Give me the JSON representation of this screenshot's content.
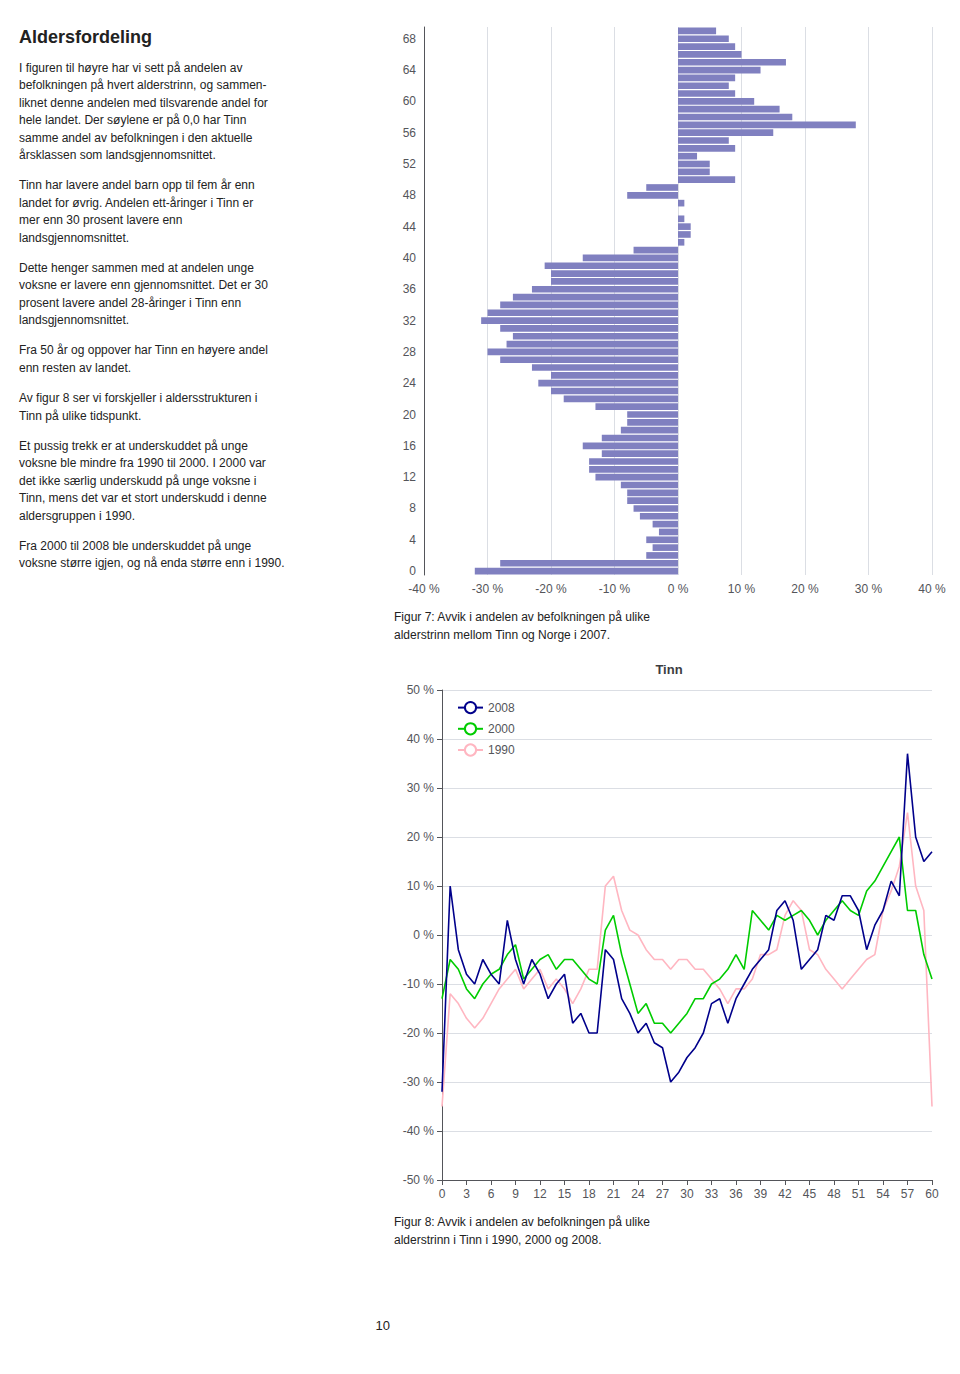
{
  "title": "Aldersfordeling",
  "annotations": [
    "I figuren til høyre har vi sett på andelen av\nbefolkningen på hvert alderstrinn, og sammen-\nliknet denne andelen med tilsvarende andel for\nhele landet. Der søylene er på 0,0 har Tinn\nsamme andel av befolkningen i den aktuelle\nårsklassen som landsgjennomsnittet.",
    "Tinn har lavere andel barn opp til fem år enn\nlandet for øvrig. Andelen ett-åringer i Tinn er\nmer enn 30 prosent lavere enn\nlandsgjennomsnittet.",
    "Dette henger sammen med at andelen unge\nvoksne er lavere enn gjennomsnittet. Det er 30\nprosent lavere andel 28-åringer i Tinn enn\nlandsgjennomsnittet.",
    "Fra 50 år og oppover har Tinn en høyere andel\nenn resten av landet.",
    "Av figur 8 ser vi forskjeller i aldersstrukturen i\nTinn på ulike tidspunkt.",
    "Et pussig trekk er at underskuddet på unge\nvoksne ble mindre fra 1990 til 2000. I 2000 var\ndet ikke særlig underskudd på unge voksne i\nTinn, mens det var et stort underskudd i denne\naldersgruppen i 1990.",
    "Fra 2000 til 2008 ble underskuddet på unge\nvoksne større igjen, og nå enda større enn i 1990.",
    "10"
  ],
  "chart_data": [
    {
      "type": "bar",
      "orientation": "horizontal",
      "categories": [
        0,
        null,
        null,
        null,
        4,
        null,
        null,
        null,
        8,
        null,
        null,
        null,
        12,
        null,
        null,
        null,
        16,
        null,
        null,
        null,
        20,
        null,
        null,
        null,
        24,
        null,
        null,
        null,
        28,
        null,
        null,
        null,
        32,
        null,
        null,
        null,
        36,
        null,
        null,
        null,
        40,
        null,
        null,
        null,
        44,
        null,
        null,
        null,
        48,
        null,
        null,
        null,
        52,
        null,
        null,
        null,
        56,
        null,
        null,
        null,
        60,
        null,
        null,
        null,
        64,
        null,
        null,
        null,
        68,
        null
      ],
      "values": [
        -32,
        -28,
        -5,
        -4,
        -5,
        -3,
        -4,
        -6,
        -7,
        -8,
        -8,
        -9,
        -13,
        -14,
        -14,
        -12,
        -15,
        -12,
        -9,
        -8,
        -8,
        -13,
        -18,
        -20,
        -22,
        -20,
        -23,
        -28,
        -30,
        -27,
        -26,
        -28,
        -31,
        -30,
        -28,
        -26,
        -23,
        -20,
        -20,
        -21,
        -15,
        -7,
        1,
        2,
        2,
        1,
        0,
        1,
        -8,
        -5,
        9,
        5,
        5,
        3,
        9,
        8,
        15,
        28,
        18,
        16,
        12,
        9,
        8,
        9,
        13,
        17,
        10,
        9,
        8,
        6
      ],
      "color": "#8080C0",
      "xlim": [
        -40,
        40
      ],
      "xticks": [
        {
          "value": -40,
          "label": "-40 %"
        },
        {
          "value": -30,
          "label": "-30 %"
        },
        {
          "value": -20,
          "label": "-20 %"
        },
        {
          "value": -10,
          "label": "-10 %"
        },
        {
          "value": 0,
          "label": "0 %"
        },
        {
          "value": 10,
          "label": "10 %"
        },
        {
          "value": 20,
          "label": "20 %"
        },
        {
          "value": 30,
          "label": "30 %"
        },
        {
          "value": 40,
          "label": "40 %"
        }
      ],
      "grid": true,
      "annotations": [
        "Figur 7: Avvik i andelen av befolkningen på ulike",
        "alderstrinn mellom Tinn og Norge i 2007."
      ]
    },
    {
      "type": "line",
      "title": "Tinn",
      "x": [
        0,
        1,
        2,
        3,
        4,
        5,
        6,
        7,
        8,
        9,
        10,
        11,
        12,
        13,
        14,
        15,
        16,
        17,
        18,
        19,
        20,
        21,
        22,
        23,
        24,
        25,
        26,
        27,
        28,
        29,
        30,
        31,
        32,
        33,
        34,
        35,
        36,
        37,
        38,
        39,
        40,
        41,
        42,
        43,
        44,
        45,
        46,
        47,
        48,
        49,
        50,
        51,
        52,
        53,
        54,
        55,
        56,
        57,
        58,
        59,
        60
      ],
      "series": [
        {
          "name": "1990",
          "color": "#FFB6C1",
          "values": [
            -35,
            -12,
            -14,
            -17,
            -19,
            -17,
            -14,
            -11,
            -9,
            -7,
            -11,
            -9,
            -7,
            -11,
            -9,
            -11,
            -14,
            -11,
            -7,
            -7,
            10,
            12,
            5,
            1,
            0,
            -3,
            -5,
            -5,
            -7,
            -5,
            -5,
            -7,
            -7,
            -9,
            -11,
            -14,
            -11,
            -11,
            -9,
            -4,
            -4,
            -3,
            4,
            7,
            5,
            -3,
            -4,
            -7,
            -9,
            -11,
            -9,
            -7,
            -5,
            -4,
            5,
            9,
            14,
            25,
            10,
            5,
            -35
          ]
        },
        {
          "name": "2000",
          "color": "#00CC00",
          "values": [
            -13,
            -5,
            -7,
            -11,
            -13,
            -10,
            -8,
            -7,
            -4,
            -2,
            -9,
            -7,
            -5,
            -4,
            -7,
            -5,
            -5,
            -7,
            -9,
            -10,
            1,
            4,
            -4,
            -10,
            -16,
            -14,
            -18,
            -18,
            -20,
            -18,
            -16,
            -13,
            -13,
            -10,
            -9,
            -7,
            -4,
            -7,
            5,
            3,
            1,
            4,
            3,
            4,
            5,
            3,
            0,
            3,
            5,
            7,
            5,
            4,
            9,
            11,
            14,
            17,
            20,
            5,
            5,
            -4,
            -9
          ]
        },
        {
          "name": "2008",
          "color": "#00008B",
          "values": [
            -32,
            10,
            -3,
            -8,
            -10,
            -5,
            -8,
            -10,
            3,
            -5,
            -10,
            -5,
            -8,
            -13,
            -10,
            -8,
            -18,
            -16,
            -20,
            -20,
            -3,
            -5,
            -13,
            -16,
            -20,
            -18,
            -22,
            -23,
            -30,
            -28,
            -25,
            -23,
            -20,
            -14,
            -13,
            -18,
            -13,
            -10,
            -7,
            -5,
            -3,
            5,
            7,
            3,
            -7,
            -5,
            -3,
            4,
            3,
            8,
            8,
            5,
            -3,
            2,
            5,
            11,
            8,
            37,
            20,
            15,
            17
          ]
        }
      ],
      "xlim": [
        0,
        60
      ],
      "xticks": [
        0,
        3,
        6,
        9,
        12,
        15,
        18,
        21,
        24,
        27,
        30,
        33,
        36,
        39,
        42,
        45,
        48,
        51,
        54,
        57,
        60
      ],
      "ylim": [
        -50,
        50
      ],
      "yticks": [
        {
          "value": -50,
          "label": "-50 %"
        },
        {
          "value": -40,
          "label": "-40 %"
        },
        {
          "value": -30,
          "label": "-30 %"
        },
        {
          "value": -20,
          "label": "-20 %"
        },
        {
          "value": -10,
          "label": "-10 %"
        },
        {
          "value": 0,
          "label": "0 %"
        },
        {
          "value": 10,
          "label": "10 %"
        },
        {
          "value": 20,
          "label": "20 %"
        },
        {
          "value": 30,
          "label": "30 %"
        },
        {
          "value": 40,
          "label": "40 %"
        },
        {
          "value": 50,
          "label": "50 %"
        }
      ],
      "grid": true,
      "legend": "upper left",
      "annotations": [
        "Figur 8: Avvik i andelen av befolkningen på ulike",
        "alderstrinn i Tinn i 1990, 2000 og 2008."
      ]
    }
  ]
}
